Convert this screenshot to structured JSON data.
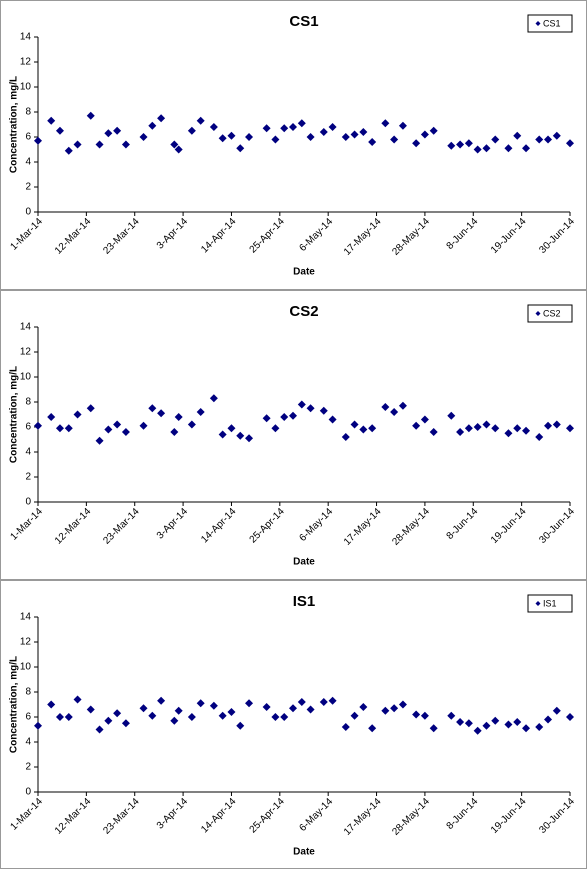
{
  "chart_data": [
    {
      "type": "scatter",
      "title": "CS1",
      "x_label": "Date",
      "y_label": "Concentration, mg/L",
      "legend": "top-right",
      "x": [
        "2014-03-01",
        "2014-03-04",
        "2014-03-06",
        "2014-03-08",
        "2014-03-10",
        "2014-03-13",
        "2014-03-15",
        "2014-03-17",
        "2014-03-19",
        "2014-03-21",
        "2014-03-25",
        "2014-03-27",
        "2014-03-29",
        "2014-04-01",
        "2014-04-02",
        "2014-04-05",
        "2014-04-07",
        "2014-04-10",
        "2014-04-12",
        "2014-04-14",
        "2014-04-16",
        "2014-04-18",
        "2014-04-22",
        "2014-04-24",
        "2014-04-26",
        "2014-04-28",
        "2014-04-30",
        "2014-05-02",
        "2014-05-05",
        "2014-05-07",
        "2014-05-10",
        "2014-05-12",
        "2014-05-14",
        "2014-05-16",
        "2014-05-19",
        "2014-05-21",
        "2014-05-23",
        "2014-05-26",
        "2014-05-28",
        "2014-05-30",
        "2014-06-03",
        "2014-06-05",
        "2014-06-07",
        "2014-06-09",
        "2014-06-11",
        "2014-06-13",
        "2014-06-16",
        "2014-06-18",
        "2014-06-20",
        "2014-06-23",
        "2014-06-25",
        "2014-06-27",
        "2014-06-30"
      ],
      "series": [
        {
          "name": "CS1",
          "color": "#000080",
          "values": [
            5.7,
            7.3,
            6.5,
            4.9,
            5.4,
            7.7,
            5.4,
            6.3,
            6.5,
            5.4,
            6.0,
            6.9,
            7.5,
            5.4,
            5.0,
            6.5,
            7.3,
            6.8,
            5.9,
            6.1,
            5.1,
            6.0,
            6.7,
            5.8,
            6.7,
            6.8,
            7.1,
            6.0,
            6.4,
            6.8,
            6.0,
            6.2,
            6.4,
            5.6,
            7.1,
            5.8,
            6.9,
            5.5,
            6.2,
            6.5,
            5.3,
            5.4,
            5.5,
            5.0,
            5.1,
            5.8,
            5.1,
            6.1,
            5.1,
            5.8,
            5.8,
            6.1,
            5.5
          ]
        }
      ],
      "xlim": [
        "2014-03-01",
        "2014-06-30"
      ],
      "xticks": [
        {
          "value": "2014-03-01",
          "label": "1-Mar-14"
        },
        {
          "value": "2014-03-12",
          "label": "12-Mar-14"
        },
        {
          "value": "2014-03-23",
          "label": "23-Mar-14"
        },
        {
          "value": "2014-04-03",
          "label": "3-Apr-14"
        },
        {
          "value": "2014-04-14",
          "label": "14-Apr-14"
        },
        {
          "value": "2014-04-25",
          "label": "25-Apr-14"
        },
        {
          "value": "2014-05-06",
          "label": "6-May-14"
        },
        {
          "value": "2014-05-17",
          "label": "17-May-14"
        },
        {
          "value": "2014-05-28",
          "label": "28-May-14"
        },
        {
          "value": "2014-06-08",
          "label": "8-Jun-14"
        },
        {
          "value": "2014-06-19",
          "label": "19-Jun-14"
        },
        {
          "value": "2014-06-30",
          "label": "30-Jun-14"
        }
      ],
      "ylim": [
        0,
        14
      ],
      "yticks": [
        0,
        2,
        4,
        6,
        8,
        10,
        12,
        14
      ]
    },
    {
      "type": "scatter",
      "title": "CS2",
      "x_label": "Date",
      "y_label": "Concentration, mg/L",
      "legend": "top-right",
      "x": [
        "2014-03-01",
        "2014-03-04",
        "2014-03-06",
        "2014-03-08",
        "2014-03-10",
        "2014-03-13",
        "2014-03-15",
        "2014-03-17",
        "2014-03-19",
        "2014-03-21",
        "2014-03-25",
        "2014-03-27",
        "2014-03-29",
        "2014-04-01",
        "2014-04-02",
        "2014-04-05",
        "2014-04-07",
        "2014-04-10",
        "2014-04-12",
        "2014-04-14",
        "2014-04-16",
        "2014-04-18",
        "2014-04-22",
        "2014-04-24",
        "2014-04-26",
        "2014-04-28",
        "2014-04-30",
        "2014-05-02",
        "2014-05-05",
        "2014-05-07",
        "2014-05-10",
        "2014-05-12",
        "2014-05-14",
        "2014-05-16",
        "2014-05-19",
        "2014-05-21",
        "2014-05-23",
        "2014-05-26",
        "2014-05-28",
        "2014-05-30",
        "2014-06-03",
        "2014-06-05",
        "2014-06-07",
        "2014-06-09",
        "2014-06-11",
        "2014-06-13",
        "2014-06-16",
        "2014-06-18",
        "2014-06-20",
        "2014-06-23",
        "2014-06-25",
        "2014-06-27",
        "2014-06-30"
      ],
      "series": [
        {
          "name": "CS2",
          "color": "#000080",
          "values": [
            6.1,
            6.8,
            5.9,
            5.9,
            7.0,
            7.5,
            4.9,
            5.8,
            6.2,
            5.6,
            6.1,
            7.5,
            7.1,
            5.6,
            6.8,
            6.2,
            7.2,
            8.3,
            5.4,
            5.9,
            5.3,
            5.1,
            6.7,
            5.9,
            6.8,
            6.9,
            7.8,
            7.5,
            7.3,
            6.6,
            5.2,
            6.2,
            5.8,
            5.9,
            7.6,
            7.2,
            7.7,
            6.1,
            6.6,
            5.6,
            6.9,
            5.6,
            5.9,
            6.0,
            6.2,
            5.9,
            5.5,
            5.9,
            5.7,
            5.2,
            6.1,
            6.2,
            5.9
          ]
        }
      ],
      "xlim": [
        "2014-03-01",
        "2014-06-30"
      ],
      "xticks": [
        {
          "value": "2014-03-01",
          "label": "1-Mar-14"
        },
        {
          "value": "2014-03-12",
          "label": "12-Mar-14"
        },
        {
          "value": "2014-03-23",
          "label": "23-Mar-14"
        },
        {
          "value": "2014-04-03",
          "label": "3-Apr-14"
        },
        {
          "value": "2014-04-14",
          "label": "14-Apr-14"
        },
        {
          "value": "2014-04-25",
          "label": "25-Apr-14"
        },
        {
          "value": "2014-05-06",
          "label": "6-May-14"
        },
        {
          "value": "2014-05-17",
          "label": "17-May-14"
        },
        {
          "value": "2014-05-28",
          "label": "28-May-14"
        },
        {
          "value": "2014-06-08",
          "label": "8-Jun-14"
        },
        {
          "value": "2014-06-19",
          "label": "19-Jun-14"
        },
        {
          "value": "2014-06-30",
          "label": "30-Jun-14"
        }
      ],
      "ylim": [
        0,
        14
      ],
      "yticks": [
        0,
        2,
        4,
        6,
        8,
        10,
        12,
        14
      ]
    },
    {
      "type": "scatter",
      "title": "IS1",
      "x_label": "Date",
      "y_label": "Concentration, mg/L",
      "legend": "top-right",
      "x": [
        "2014-03-01",
        "2014-03-04",
        "2014-03-06",
        "2014-03-08",
        "2014-03-10",
        "2014-03-13",
        "2014-03-15",
        "2014-03-17",
        "2014-03-19",
        "2014-03-21",
        "2014-03-25",
        "2014-03-27",
        "2014-03-29",
        "2014-04-01",
        "2014-04-02",
        "2014-04-05",
        "2014-04-07",
        "2014-04-10",
        "2014-04-12",
        "2014-04-14",
        "2014-04-16",
        "2014-04-18",
        "2014-04-22",
        "2014-04-24",
        "2014-04-26",
        "2014-04-28",
        "2014-04-30",
        "2014-05-02",
        "2014-05-05",
        "2014-05-07",
        "2014-05-10",
        "2014-05-12",
        "2014-05-14",
        "2014-05-16",
        "2014-05-19",
        "2014-05-21",
        "2014-05-23",
        "2014-05-26",
        "2014-05-28",
        "2014-05-30",
        "2014-06-03",
        "2014-06-05",
        "2014-06-07",
        "2014-06-09",
        "2014-06-11",
        "2014-06-13",
        "2014-06-16",
        "2014-06-18",
        "2014-06-20",
        "2014-06-23",
        "2014-06-25",
        "2014-06-27",
        "2014-06-30"
      ],
      "series": [
        {
          "name": "IS1",
          "color": "#000080",
          "values": [
            5.3,
            7.0,
            6.0,
            6.0,
            7.4,
            6.6,
            5.0,
            5.7,
            6.3,
            5.5,
            6.7,
            6.1,
            7.3,
            5.7,
            6.5,
            6.0,
            7.1,
            6.9,
            6.1,
            6.4,
            5.3,
            7.1,
            6.8,
            6.0,
            6.0,
            6.7,
            7.2,
            6.6,
            7.2,
            7.3,
            5.2,
            6.1,
            6.8,
            5.1,
            6.5,
            6.7,
            7.0,
            6.2,
            6.1,
            5.1,
            6.1,
            5.6,
            5.5,
            4.9,
            5.3,
            5.7,
            5.4,
            5.6,
            5.1,
            5.2,
            5.8,
            6.5,
            6.0
          ]
        }
      ],
      "xlim": [
        "2014-03-01",
        "2014-06-30"
      ],
      "xticks": [
        {
          "value": "2014-03-01",
          "label": "1-Mar-14"
        },
        {
          "value": "2014-03-12",
          "label": "12-Mar-14"
        },
        {
          "value": "2014-03-23",
          "label": "23-Mar-14"
        },
        {
          "value": "2014-04-03",
          "label": "3-Apr-14"
        },
        {
          "value": "2014-04-14",
          "label": "14-Apr-14"
        },
        {
          "value": "2014-04-25",
          "label": "25-Apr-14"
        },
        {
          "value": "2014-05-06",
          "label": "6-May-14"
        },
        {
          "value": "2014-05-17",
          "label": "17-May-14"
        },
        {
          "value": "2014-05-28",
          "label": "28-May-14"
        },
        {
          "value": "2014-06-08",
          "label": "8-Jun-14"
        },
        {
          "value": "2014-06-19",
          "label": "19-Jun-14"
        },
        {
          "value": "2014-06-30",
          "label": "30-Jun-14"
        }
      ],
      "ylim": [
        0,
        14
      ],
      "yticks": [
        0,
        2,
        4,
        6,
        8,
        10,
        12,
        14
      ]
    }
  ]
}
